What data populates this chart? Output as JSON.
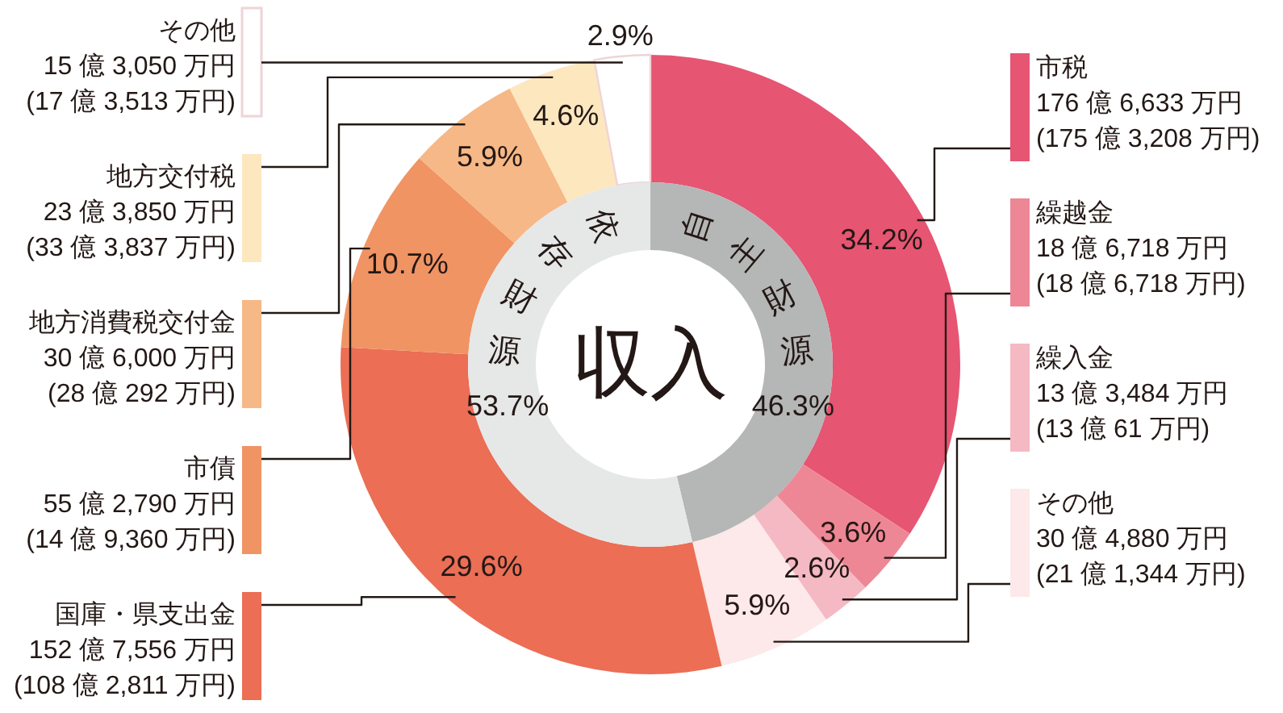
{
  "chart_data": [
    {
      "type": "donut",
      "categories": [
        "市税\n176 億 6,633 万円\n(175 億 3,208 万円)",
        "繰越金\n18 億 6,718 万円\n(18 億 6,718 万円)",
        "繰入金\n13 億 3,484 万円\n(13 億 61 万円)",
        "その他\n30 億 4,880 万円\n(21 億 1,344 万円)",
        "国庫・県支出金\n152 億 7,556 万円\n(108 億 2,811 万円)",
        "市債\n55 億 2,790 万円\n(14 億 9,360 万円)",
        "地方消費税交付金\n30 億 6,000 万円\n(28 億 292 万円)",
        "地方交付税\n23 億 3,850 万円\n(33 億 3,837 万円)",
        "その他\n15 億 3,050 万円\n(17 億 3,513 万円)"
      ],
      "values": [
        34.2,
        3.6,
        2.6,
        5.9,
        29.6,
        10.7,
        5.9,
        4.6,
        2.9
      ],
      "colors": [
        "#e65572",
        "#ee8795",
        "#f4b9c3",
        "#fde8ea",
        "#eb6e55",
        "#f09464",
        "#f6b886",
        "#fde7bf",
        "#ffffff"
      ],
      "value_labels": [
        "34.2%",
        "3.6%",
        "2.6%",
        "5.9%",
        "29.6%",
        "10.7%",
        "5.9%",
        "4.6%",
        "2.9%"
      ]
    },
    {
      "type": "donut",
      "title": "収入",
      "categories": [
        "自主財源",
        "依存財源"
      ],
      "values": [
        46.3,
        53.7
      ],
      "colors": [
        "#b5b6b6",
        "#e6e7e7"
      ],
      "value_labels": [
        "46.3%",
        "53.7%"
      ]
    }
  ]
}
